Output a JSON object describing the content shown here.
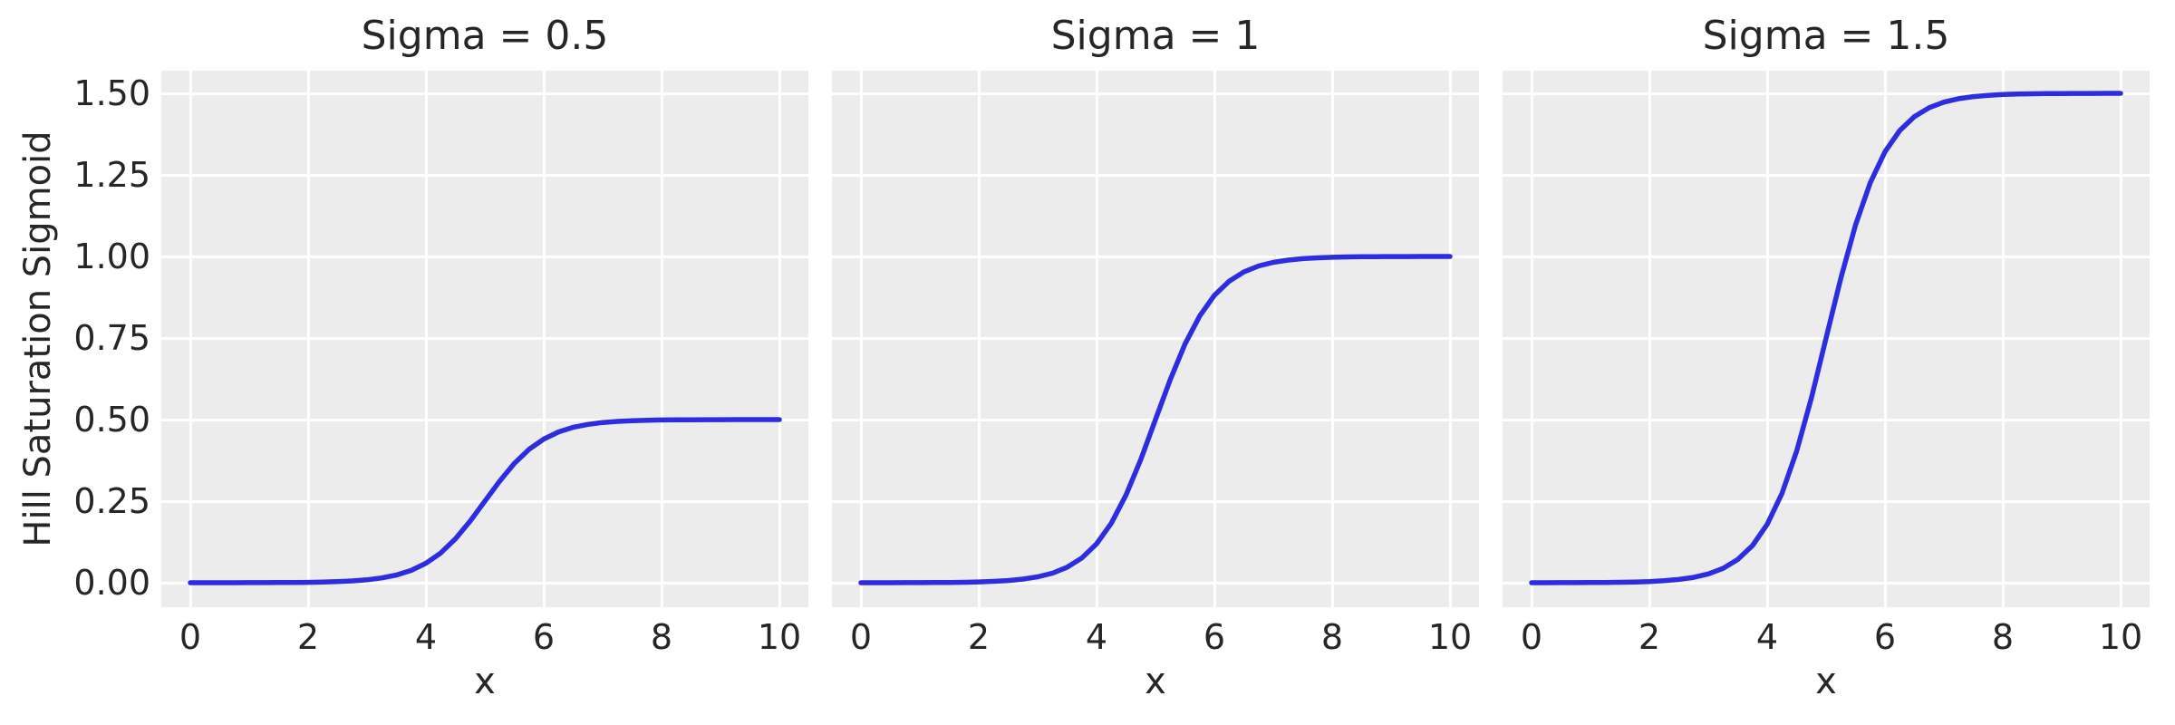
{
  "figure": {
    "background": "#ffffff",
    "axes_background": "#ececec",
    "grid_color": "#ffffff",
    "line_color": "#2c2ce0",
    "text_color": "#262626"
  },
  "chart_data": {
    "type": "line",
    "title": "",
    "xlabel": "x",
    "ylabel": "Hill Saturation Sigmoid",
    "subplot_titles": [
      "Sigma = 0.5",
      "Sigma = 1",
      "Sigma = 1.5"
    ],
    "x_tick_labels": [
      "0",
      "2",
      "4",
      "6",
      "8",
      "10"
    ],
    "x_tick_values": [
      0,
      2,
      4,
      6,
      8,
      10
    ],
    "y_tick_labels": [
      "0.00",
      "0.25",
      "0.50",
      "0.75",
      "1.00",
      "1.25",
      "1.50"
    ],
    "y_tick_values": [
      0.0,
      0.25,
      0.5,
      0.75,
      1.0,
      1.25,
      1.5
    ],
    "xlim": [
      -0.49,
      10.49
    ],
    "ylim": [
      -0.075,
      1.57
    ],
    "grid": true,
    "legend": "none",
    "x": [
      0,
      0.25,
      0.5,
      0.75,
      1,
      1.25,
      1.5,
      1.75,
      2,
      2.25,
      2.5,
      2.75,
      3,
      3.25,
      3.5,
      3.75,
      4,
      4.25,
      4.5,
      4.75,
      5,
      5.25,
      5.5,
      5.75,
      6,
      6.25,
      6.5,
      6.75,
      7,
      7.25,
      7.5,
      7.75,
      8,
      8.25,
      8.5,
      8.75,
      9,
      9.25,
      9.5,
      9.75,
      10
    ],
    "series": [
      {
        "name": "Sigma = 0.5",
        "sigma": 0.5,
        "saturation_level": 0.5,
        "inflection_x": 5,
        "y": [
          0.0,
          0.0,
          0.0001,
          0.0001,
          0.0002,
          0.0003,
          0.0005,
          0.0008,
          0.0012,
          0.002,
          0.0033,
          0.0055,
          0.009,
          0.0147,
          0.0237,
          0.0379,
          0.0596,
          0.0912,
          0.1345,
          0.1888,
          0.25,
          0.3112,
          0.3655,
          0.4088,
          0.4404,
          0.4621,
          0.4763,
          0.4853,
          0.491,
          0.4945,
          0.4967,
          0.498,
          0.4988,
          0.4993,
          0.4995,
          0.4997,
          0.4998,
          0.4999,
          0.4999,
          0.5,
          0.5
        ]
      },
      {
        "name": "Sigma = 1",
        "sigma": 1,
        "saturation_level": 1.0,
        "inflection_x": 5,
        "y": [
          0.0,
          0.0001,
          0.0001,
          0.0002,
          0.0003,
          0.0006,
          0.0009,
          0.0015,
          0.0025,
          0.0041,
          0.0067,
          0.011,
          0.018,
          0.0293,
          0.0474,
          0.0759,
          0.1192,
          0.1824,
          0.2689,
          0.3775,
          0.5,
          0.6225,
          0.7311,
          0.8176,
          0.8808,
          0.9241,
          0.9526,
          0.9707,
          0.982,
          0.989,
          0.9933,
          0.9959,
          0.9975,
          0.9985,
          0.9991,
          0.9995,
          0.9997,
          0.9998,
          0.9999,
          0.9999,
          1.0
        ]
      },
      {
        "name": "Sigma = 1.5",
        "sigma": 1.5,
        "saturation_level": 1.5,
        "inflection_x": 5,
        "y": [
          0.0001,
          0.0001,
          0.0002,
          0.0003,
          0.0005,
          0.0008,
          0.0014,
          0.0023,
          0.0037,
          0.0061,
          0.01,
          0.0165,
          0.027,
          0.044,
          0.0711,
          0.1138,
          0.1788,
          0.2736,
          0.4034,
          0.5663,
          0.75,
          0.9337,
          1.0966,
          1.2264,
          1.3212,
          1.3862,
          1.4289,
          1.456,
          1.473,
          1.4835,
          1.49,
          1.4939,
          1.4963,
          1.4978,
          1.4986,
          1.4992,
          1.4995,
          1.4997,
          1.4998,
          1.4999,
          1.4999
        ]
      }
    ]
  }
}
